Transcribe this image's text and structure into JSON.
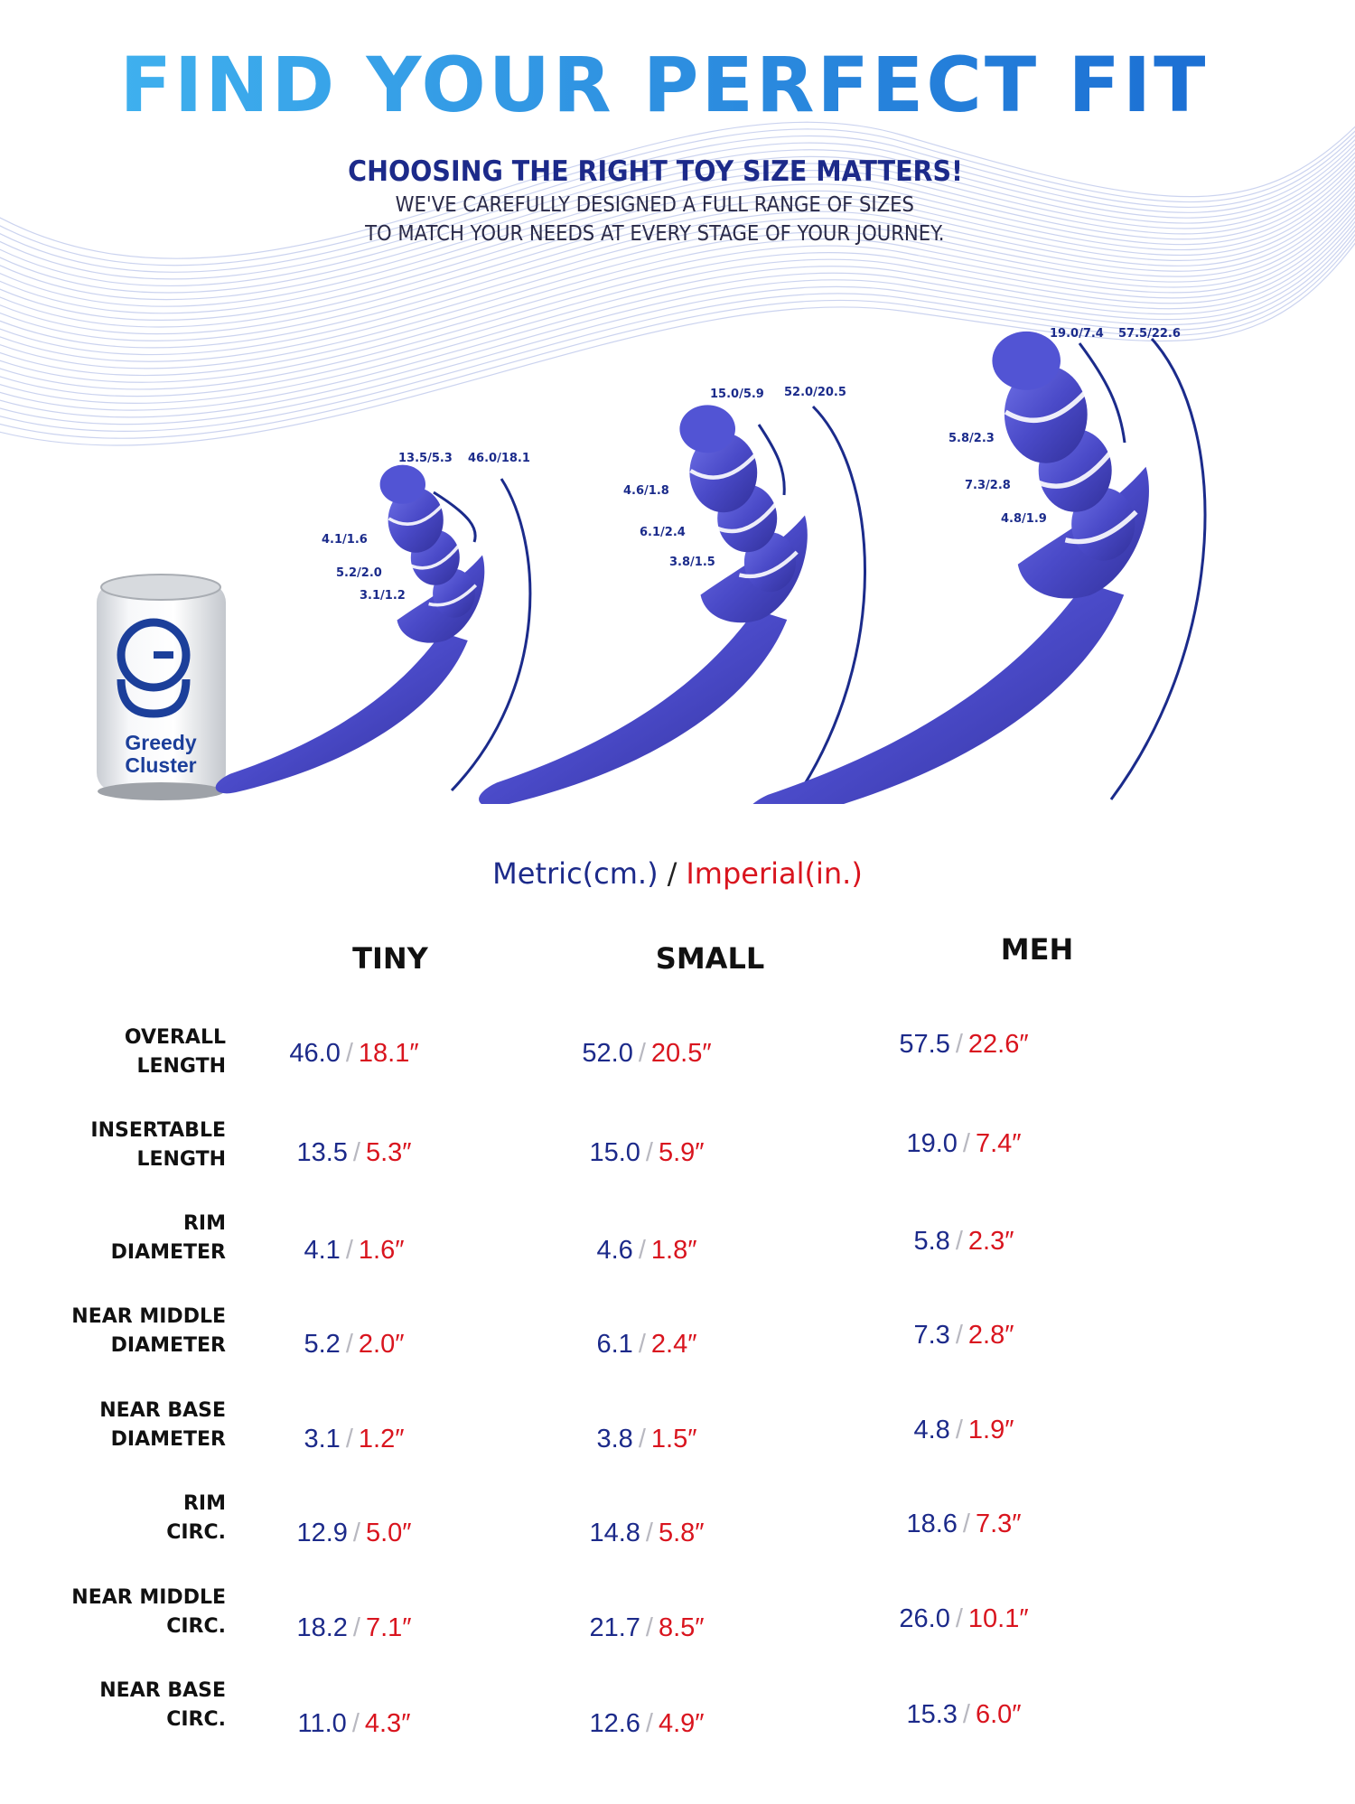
{
  "header": {
    "title": "FIND YOUR PERFECT FIT",
    "subtitle": "CHOOSING THE RIGHT TOY SIZE MATTERS!",
    "tagline_line1": "WE'VE CAREFULLY DESIGNED A FULL RANGE OF SIZES",
    "tagline_line2": "TO MATCH YOUR NEEDS AT EVERY STAGE OF YOUR JOURNEY."
  },
  "can": {
    "brand_line1": "Greedy",
    "brand_line2": "Cluster"
  },
  "illustration_labels": {
    "tiny": {
      "insertable": "13.5/5.3",
      "overall": "46.0/18.1",
      "rim": "4.1/1.6",
      "near_middle": "5.2/2.0",
      "near_base": "3.1/1.2"
    },
    "small": {
      "insertable": "15.0/5.9",
      "overall": "52.0/20.5",
      "rim": "4.6/1.8",
      "near_middle": "6.1/2.4",
      "near_base": "3.8/1.5"
    },
    "meh": {
      "insertable": "19.0/7.4",
      "overall": "57.5/22.6",
      "rim": "5.8/2.3",
      "near_middle": "7.3/2.8",
      "near_base": "4.8/1.9"
    }
  },
  "units": {
    "metric": "Metric(cm.)",
    "separator": "/",
    "imperial": "Imperial(in.)"
  },
  "sizes": [
    "TINY",
    "SMALL",
    "MEH"
  ],
  "table": {
    "separator": "/",
    "rows": [
      {
        "label1": "OVERALL",
        "label2": "LENGTH",
        "values": [
          {
            "metric": "46.0",
            "imperial": "18.1″"
          },
          {
            "metric": "52.0",
            "imperial": "20.5″"
          },
          {
            "metric": "57.5",
            "imperial": "22.6″"
          }
        ]
      },
      {
        "label1": "INSERTABLE",
        "label2": "LENGTH",
        "values": [
          {
            "metric": "13.5",
            "imperial": "5.3″"
          },
          {
            "metric": "15.0",
            "imperial": "5.9″"
          },
          {
            "metric": "19.0",
            "imperial": "7.4″"
          }
        ]
      },
      {
        "label1": "RIM",
        "label2": "DIAMETER",
        "values": [
          {
            "metric": "4.1",
            "imperial": "1.6″"
          },
          {
            "metric": "4.6",
            "imperial": "1.8″"
          },
          {
            "metric": "5.8",
            "imperial": "2.3″"
          }
        ]
      },
      {
        "label1": "NEAR MIDDLE",
        "label2": "DIAMETER",
        "values": [
          {
            "metric": "5.2",
            "imperial": "2.0″"
          },
          {
            "metric": "6.1",
            "imperial": "2.4″"
          },
          {
            "metric": "7.3",
            "imperial": "2.8″"
          }
        ]
      },
      {
        "label1": "NEAR BASE",
        "label2": "DIAMETER",
        "values": [
          {
            "metric": "3.1",
            "imperial": "1.2″"
          },
          {
            "metric": "3.8",
            "imperial": "1.5″"
          },
          {
            "metric": "4.8",
            "imperial": "1.9″"
          }
        ]
      },
      {
        "label1": "RIM",
        "label2": "CIRC.",
        "values": [
          {
            "metric": "12.9",
            "imperial": "5.0″"
          },
          {
            "metric": "14.8",
            "imperial": "5.8″"
          },
          {
            "metric": "18.6",
            "imperial": "7.3″"
          }
        ]
      },
      {
        "label1": "NEAR MIDDLE",
        "label2": "CIRC.",
        "values": [
          {
            "metric": "18.2",
            "imperial": "7.1″"
          },
          {
            "metric": "21.7",
            "imperial": "8.5″"
          },
          {
            "metric": "26.0",
            "imperial": "10.1″"
          }
        ]
      },
      {
        "label1": "NEAR BASE",
        "label2": "CIRC.",
        "values": [
          {
            "metric": "11.0",
            "imperial": "4.3″"
          },
          {
            "metric": "12.6",
            "imperial": "4.9″"
          },
          {
            "metric": "15.3",
            "imperial": "6.0″"
          }
        ]
      }
    ]
  }
}
